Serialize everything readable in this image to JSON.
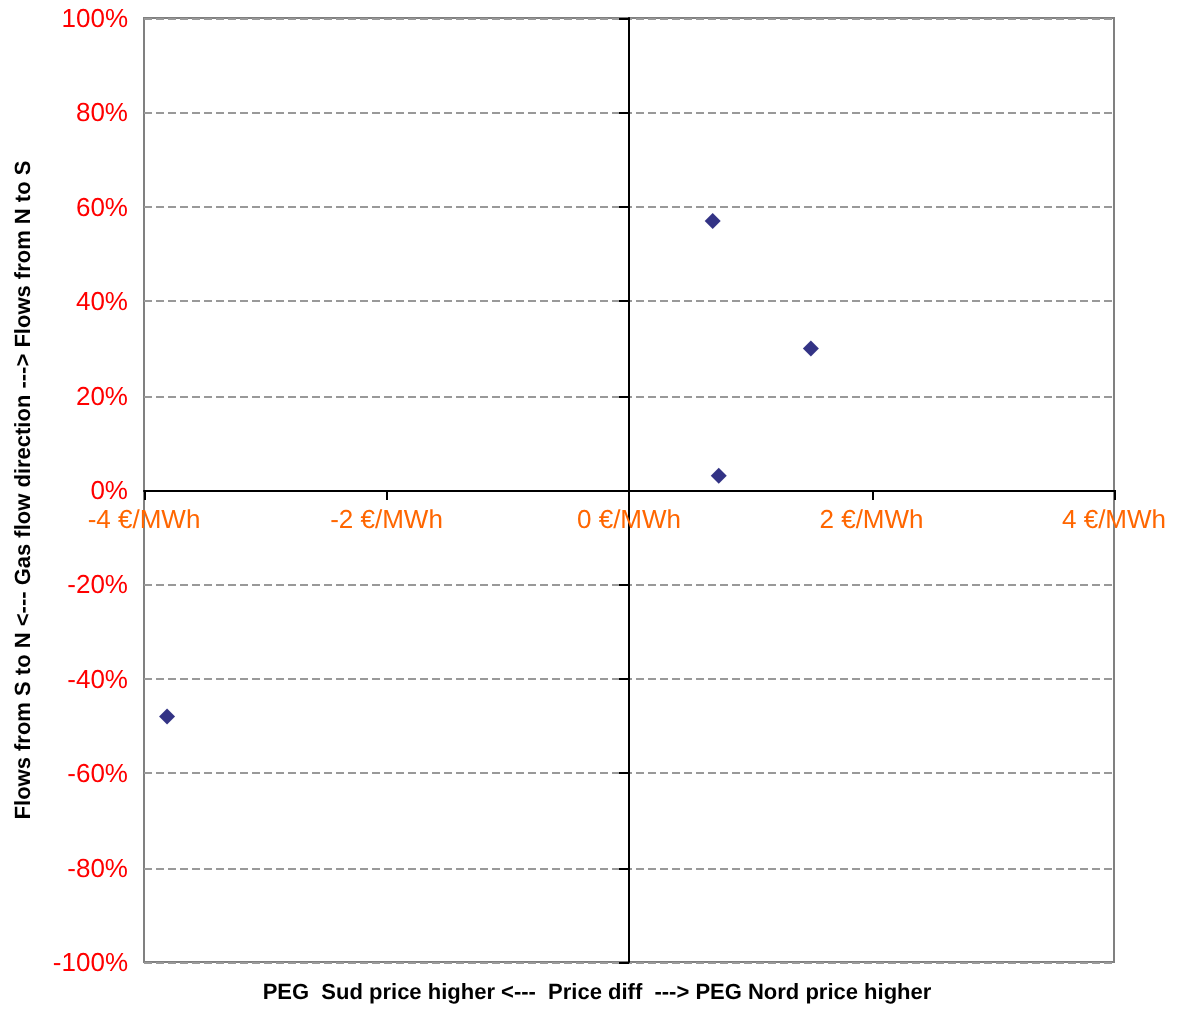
{
  "chart_data": {
    "type": "scatter",
    "xlabel": "PEG  Sud price higher <---  Price diff  ---> PEG Nord price higher",
    "ylabel": "Flows from S to N <--- Gas flow direction ---> Flows from N to S",
    "series": [
      {
        "color": "#000066",
        "x": [
          0.69,
          1.5,
          0.74,
          -3.81
        ],
        "values": [
          57,
          30,
          3,
          -48
        ]
      }
    ],
    "xlim": [
      -4,
      4
    ],
    "xticks": [
      {
        "value": -4,
        "label": "-4 €/MWh"
      },
      {
        "value": -2,
        "label": "-2 €/MWh"
      },
      {
        "value": 0,
        "label": "0 €/MWh"
      },
      {
        "value": 2,
        "label": "2 €/MWh"
      },
      {
        "value": 4,
        "label": "4 €/MWh"
      }
    ],
    "ylim": [
      -100,
      100
    ],
    "yticks": [
      {
        "value": -100,
        "label": "-100%"
      },
      {
        "value": -80,
        "label": "-80%"
      },
      {
        "value": -60,
        "label": "-60%"
      },
      {
        "value": -40,
        "label": "-40%"
      },
      {
        "value": -20,
        "label": "-20%"
      },
      {
        "value": 0,
        "label": "0%"
      },
      {
        "value": 20,
        "label": "20%"
      },
      {
        "value": 40,
        "label": "40%"
      },
      {
        "value": 60,
        "label": "60%"
      },
      {
        "value": 80,
        "label": "80%"
      },
      {
        "value": 100,
        "label": "100%"
      }
    ],
    "grid": "y",
    "marker": "diamond"
  }
}
